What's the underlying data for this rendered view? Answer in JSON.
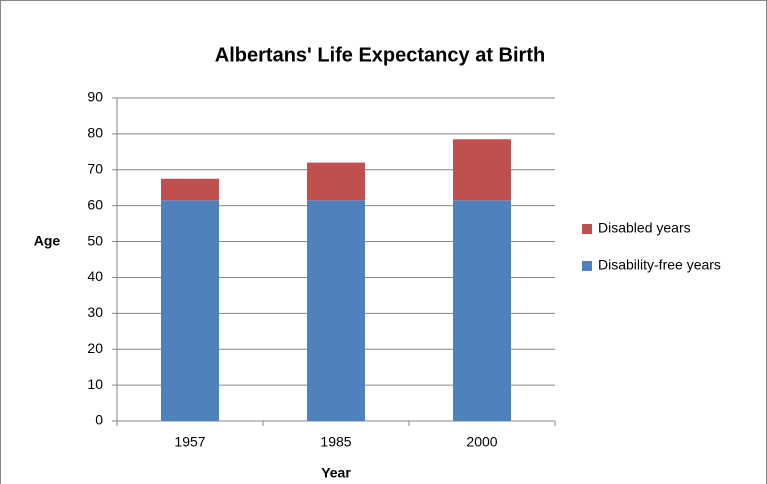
{
  "chart_data": {
    "type": "stacked_bar",
    "title": "Albertans' Life Expectancy at Birth",
    "x_label": "Year",
    "y_label": "Age",
    "categories": [
      "1957",
      "1985",
      "2000"
    ],
    "series": [
      {
        "name": "Disability-free years",
        "color": "#4f81bd",
        "values": [
          61.5,
          61.5,
          61.5
        ]
      },
      {
        "name": "Disabled years",
        "color": "#c0504d",
        "values": [
          6,
          10.5,
          17
        ]
      }
    ],
    "ylim": [
      0,
      90
    ],
    "yticks": [
      0,
      10,
      20,
      30,
      40,
      50,
      60,
      70,
      80,
      90
    ],
    "grid": true,
    "legend": "right"
  }
}
